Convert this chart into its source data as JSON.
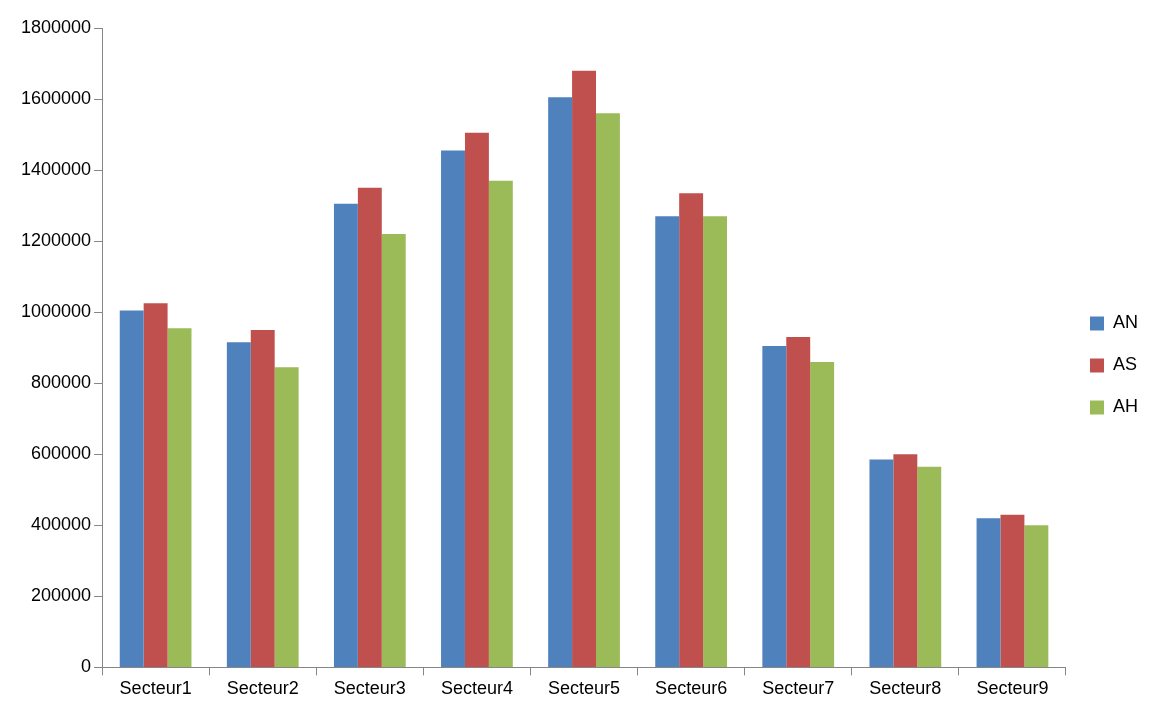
{
  "chart_data": {
    "type": "bar",
    "categories": [
      "Secteur1",
      "Secteur2",
      "Secteur3",
      "Secteur4",
      "Secteur5",
      "Secteur6",
      "Secteur7",
      "Secteur8",
      "Secteur9"
    ],
    "series": [
      {
        "name": "AN",
        "color": "#4f81bd",
        "values": [
          1005000,
          915000,
          1305000,
          1455000,
          1605000,
          1270000,
          905000,
          585000,
          420000
        ]
      },
      {
        "name": "AS",
        "color": "#c0504d",
        "values": [
          1025000,
          950000,
          1350000,
          1505000,
          1680000,
          1335000,
          930000,
          600000,
          430000
        ]
      },
      {
        "name": "AH",
        "color": "#9bbb59",
        "values": [
          955000,
          845000,
          1220000,
          1370000,
          1560000,
          1270000,
          860000,
          565000,
          400000
        ]
      }
    ],
    "ylim": [
      0,
      1800000
    ],
    "yticks": [
      0,
      200000,
      400000,
      600000,
      800000,
      1000000,
      1200000,
      1400000,
      1600000,
      1800000
    ],
    "grid": false,
    "legend": "right"
  }
}
